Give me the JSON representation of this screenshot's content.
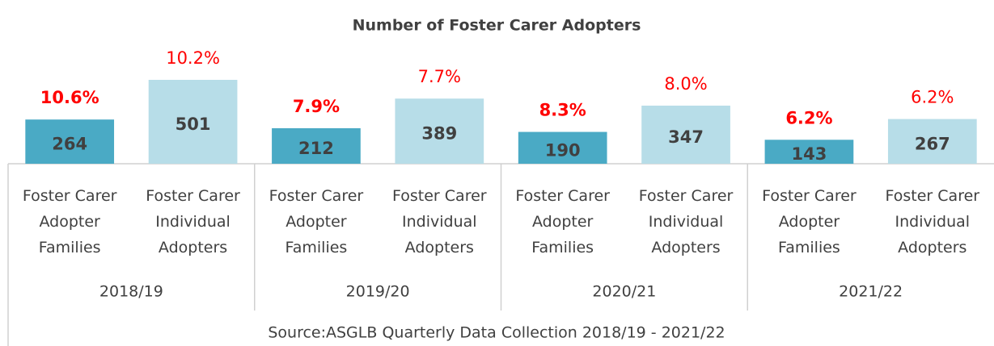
{
  "chart_data": {
    "type": "bar",
    "title": "Number of Foster Carer Adopters",
    "categories": [
      "2018/19",
      "2019/20",
      "2020/21",
      "2021/22"
    ],
    "series": [
      {
        "name": "Foster Carer Adopter Families",
        "color": "#4aaac5",
        "values": [
          264,
          212,
          190,
          143
        ],
        "percentages": [
          10.6,
          7.9,
          8.3,
          6.2
        ],
        "percentage_labels": [
          "10.6%",
          "7.9%",
          "8.3%",
          "6.2%"
        ]
      },
      {
        "name": "Foster Carer Individual Adopters",
        "color": "#b7dde8",
        "values": [
          501,
          389,
          347,
          267
        ],
        "percentages": [
          10.2,
          7.7,
          8.0,
          6.2
        ],
        "percentage_labels": [
          "10.2%",
          "7.7%",
          "8.0%",
          "6.2%"
        ]
      }
    ],
    "source": "Source:ASGLB Quarterly Data Collection 2018/19 - 2021/22"
  }
}
